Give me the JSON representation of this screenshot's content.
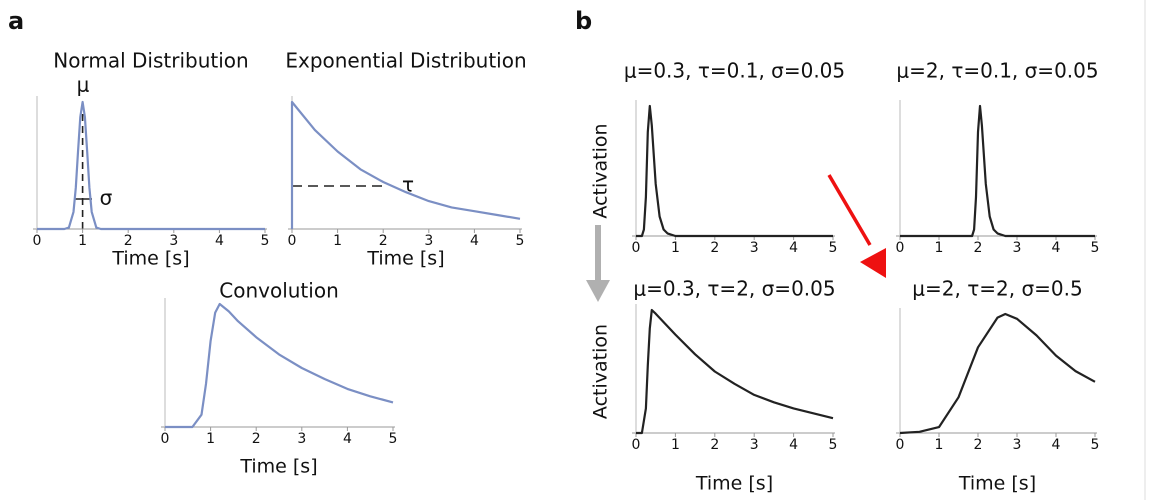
{
  "panel_labels": [
    "a",
    "b"
  ],
  "chart_data": [
    {
      "type": "line",
      "title": "Normal Distribution",
      "xlabel": "Time [s]",
      "annotations": [
        "μ",
        "σ"
      ],
      "x": [
        0,
        0.6,
        0.7,
        0.8,
        0.85,
        0.9,
        0.95,
        1.0,
        1.05,
        1.1,
        1.15,
        1.2,
        1.3,
        1.4,
        5
      ],
      "values": [
        0,
        0,
        0.011,
        0.135,
        0.325,
        0.607,
        0.882,
        1,
        0.882,
        0.607,
        0.325,
        0.135,
        0.011,
        0,
        0
      ],
      "color": "#7b8fc4",
      "xlim": [
        0,
        5
      ],
      "ylim": [
        0,
        1
      ],
      "xticks": [
        0,
        1,
        2,
        3,
        4,
        5
      ]
    },
    {
      "type": "line",
      "title": "Exponential Distribution",
      "xlabel": "Time [s]",
      "annotations": [
        "τ"
      ],
      "x": [
        0,
        0,
        0.5,
        1,
        1.5,
        2,
        2.5,
        3,
        3.5,
        4,
        4.5,
        5
      ],
      "values": [
        0,
        1,
        0.78,
        0.61,
        0.47,
        0.37,
        0.29,
        0.22,
        0.17,
        0.14,
        0.11,
        0.08
      ],
      "color": "#7b8fc4",
      "xlim": [
        0,
        5
      ],
      "ylim": [
        0,
        1
      ],
      "xticks": [
        0,
        1,
        2,
        3,
        4,
        5
      ]
    },
    {
      "type": "line",
      "title": "Convolution",
      "xlabel": "Time [s]",
      "x": [
        0,
        0.6,
        0.8,
        0.9,
        1.0,
        1.1,
        1.2,
        1.4,
        1.6,
        2,
        2.5,
        3,
        3.5,
        4,
        4.5,
        5
      ],
      "values": [
        0,
        0,
        0.1,
        0.35,
        0.7,
        0.93,
        1,
        0.94,
        0.86,
        0.73,
        0.59,
        0.48,
        0.39,
        0.31,
        0.25,
        0.2
      ],
      "color": "#7b8fc4",
      "xlim": [
        0,
        5
      ],
      "ylim": [
        0,
        1
      ],
      "xticks": [
        0,
        1,
        2,
        3,
        4,
        5
      ]
    },
    {
      "type": "line",
      "title": "μ=0.3, τ=0.1, σ=0.05",
      "ylabel": "Activation",
      "x": [
        0,
        0.15,
        0.2,
        0.25,
        0.3,
        0.35,
        0.4,
        0.5,
        0.6,
        0.7,
        0.8,
        1,
        5
      ],
      "values": [
        0,
        0,
        0.05,
        0.3,
        0.8,
        1,
        0.85,
        0.4,
        0.15,
        0.05,
        0.02,
        0,
        0
      ],
      "color": "#222222",
      "xlim": [
        0,
        5
      ],
      "ylim": [
        0,
        1
      ],
      "xticks": [
        0,
        1,
        2,
        3,
        4,
        5
      ]
    },
    {
      "type": "line",
      "title": "μ=2, τ=0.1, σ=0.05",
      "x": [
        0,
        1.85,
        1.9,
        1.95,
        2,
        2.05,
        2.1,
        2.2,
        2.3,
        2.4,
        2.5,
        2.7,
        5
      ],
      "values": [
        0,
        0,
        0.05,
        0.3,
        0.8,
        1,
        0.85,
        0.4,
        0.15,
        0.05,
        0.02,
        0,
        0
      ],
      "color": "#222222",
      "xlim": [
        0,
        5
      ],
      "ylim": [
        0,
        1
      ],
      "xticks": [
        0,
        1,
        2,
        3,
        4,
        5
      ]
    },
    {
      "type": "line",
      "title": "μ=0.3, τ=2, σ=0.05",
      "ylabel": "Activation",
      "xlabel": "Time [s]",
      "x": [
        0,
        0.15,
        0.25,
        0.3,
        0.35,
        0.4,
        0.5,
        1,
        1.5,
        2,
        2.5,
        3,
        3.5,
        4,
        4.5,
        5
      ],
      "values": [
        0,
        0,
        0.2,
        0.55,
        0.85,
        1,
        0.97,
        0.8,
        0.64,
        0.5,
        0.4,
        0.31,
        0.25,
        0.2,
        0.16,
        0.12
      ],
      "color": "#222222",
      "xlim": [
        0,
        5
      ],
      "ylim": [
        0,
        1
      ],
      "xticks": [
        0,
        1,
        2,
        3,
        4,
        5
      ]
    },
    {
      "type": "line",
      "title": "μ=2, τ=2, σ=0.5",
      "xlabel": "Time [s]",
      "x": [
        0,
        0.5,
        1,
        1.5,
        2,
        2.5,
        2.7,
        3,
        3.5,
        4,
        4.5,
        5
      ],
      "values": [
        0,
        0.01,
        0.05,
        0.3,
        0.72,
        0.97,
        1,
        0.96,
        0.82,
        0.65,
        0.52,
        0.43
      ],
      "color": "#222222",
      "xlim": [
        0,
        5
      ],
      "ylim": [
        0,
        1
      ],
      "xticks": [
        0,
        1,
        2,
        3,
        4,
        5
      ]
    }
  ]
}
